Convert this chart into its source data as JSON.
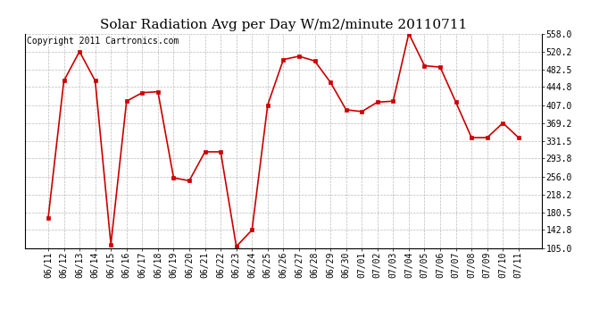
{
  "title": "Solar Radiation Avg per Day W/m2/minute 20110711",
  "copyright": "Copyright 2011 Cartronics.com",
  "labels": [
    "06/11",
    "06/12",
    "06/13",
    "06/14",
    "06/15",
    "06/16",
    "06/17",
    "06/18",
    "06/19",
    "06/20",
    "06/21",
    "06/22",
    "06/23",
    "06/24",
    "06/25",
    "06/26",
    "06/27",
    "06/28",
    "06/29",
    "06/30",
    "07/01",
    "07/02",
    "07/03",
    "07/04",
    "07/05",
    "07/06",
    "07/07",
    "07/08",
    "07/09",
    "07/10",
    "07/11"
  ],
  "values": [
    168,
    458,
    520,
    458,
    112,
    415,
    433,
    435,
    253,
    247,
    308,
    308,
    108,
    143,
    407,
    503,
    510,
    500,
    455,
    397,
    393,
    413,
    415,
    558,
    490,
    487,
    413,
    338,
    338,
    369,
    338
  ],
  "line_color": "#cc0000",
  "marker_color": "#cc0000",
  "bg_color": "#ffffff",
  "plot_bg_color": "#ffffff",
  "grid_color": "#bbbbbb",
  "yticks": [
    105.0,
    142.8,
    180.5,
    218.2,
    256.0,
    293.8,
    331.5,
    369.2,
    407.0,
    444.8,
    482.5,
    520.2,
    558.0
  ],
  "ylim": [
    105.0,
    558.0
  ],
  "title_fontsize": 11,
  "tick_fontsize": 7,
  "copyright_fontsize": 7,
  "figwidth": 6.9,
  "figheight": 3.75,
  "dpi": 100
}
